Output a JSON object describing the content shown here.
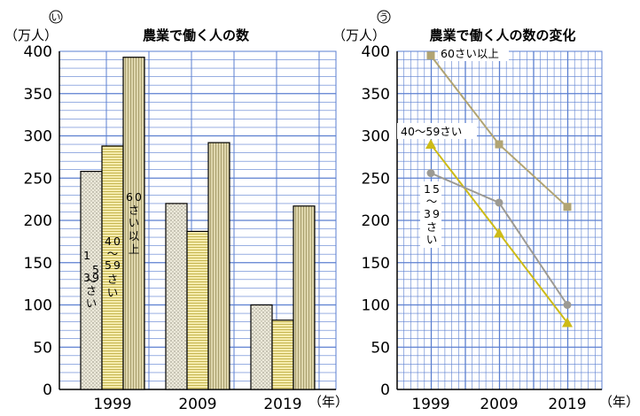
{
  "colors": {
    "grid": "#5b7fd0",
    "bar_15_39": "#ece9da",
    "bar_40_59": "#f3e79a",
    "bar_60": "#d8cfa1",
    "line_60": "#b1a473",
    "line_40_59": "#cdbb17",
    "line_15_39": "#9c9a93",
    "axis": "#000000"
  },
  "icons": [
    "circled-i-mark",
    "circled-u-mark",
    "triangle-marker",
    "square-marker",
    "circle-marker"
  ],
  "chart_data": [
    {
      "type": "bar",
      "mark": "い",
      "title": "農業で働く人の数",
      "ylabel": "（万人）",
      "xlabel": "（年）",
      "ylim": [
        0,
        400
      ],
      "yticks": [
        "0",
        "50",
        "100",
        "150",
        "200",
        "250",
        "300",
        "350",
        "400"
      ],
      "categories": [
        "1999",
        "2009",
        "2019"
      ],
      "series": [
        {
          "name": "15〜39さい",
          "values": [
            258,
            220,
            100
          ]
        },
        {
          "name": "40〜59さい",
          "values": [
            288,
            187,
            82
          ]
        },
        {
          "name": "60さい以上",
          "values": [
            393,
            292,
            217
          ]
        }
      ],
      "grid": true
    },
    {
      "type": "line",
      "mark": "う",
      "title": "農業で働く人の数の変化",
      "ylabel": "（万人）",
      "xlabel": "（年）",
      "ylim": [
        0,
        400
      ],
      "yticks": [
        "0",
        "50",
        "100",
        "150",
        "200",
        "250",
        "300",
        "350",
        "400"
      ],
      "x": [
        "1999",
        "2009",
        "2019"
      ],
      "series": [
        {
          "name": "60さい以上",
          "values": [
            395,
            290,
            216
          ]
        },
        {
          "name": "40〜59さい",
          "values": [
            290,
            185,
            79
          ]
        },
        {
          "name": "15〜39さい",
          "values": [
            256,
            221,
            100
          ]
        }
      ],
      "grid": true
    }
  ]
}
